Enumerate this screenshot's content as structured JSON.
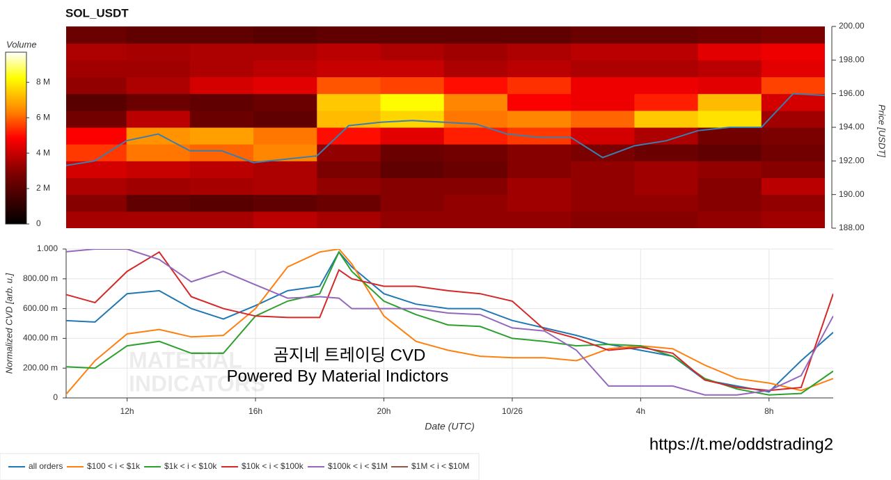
{
  "chart_data": [
    {
      "type": "heatmap",
      "title": "SOL_USDT",
      "colorbar_label": "Volume",
      "ylabel": "Price [USDT]",
      "xlim": [
        10.1,
        34
      ],
      "ylim": [
        188,
        200
      ],
      "yticks": [
        {
          "value": 188,
          "label": "188.00"
        },
        {
          "value": 190,
          "label": "190.00"
        },
        {
          "value": 192,
          "label": "192.00"
        },
        {
          "value": 194,
          "label": "194.00"
        },
        {
          "value": 196,
          "label": "196.00"
        },
        {
          "value": 198,
          "label": "198.00"
        },
        {
          "value": 200,
          "label": "200.00"
        }
      ],
      "zlim": [
        0,
        9.7
      ],
      "zticks": [
        0,
        {
          "value": 2,
          "label": "2 M"
        },
        {
          "value": 4,
          "label": "4 M"
        },
        {
          "value": 6,
          "label": "6 M"
        },
        {
          "value": 8,
          "label": "8 M"
        }
      ],
      "x_bins": [
        10,
        12,
        14,
        16,
        18,
        20,
        22,
        24,
        26,
        28,
        30,
        32,
        34
      ],
      "y_bins": [
        188,
        189,
        190,
        191,
        192,
        193,
        194,
        195,
        196,
        197,
        198,
        199,
        200
      ],
      "z": [
        [
          3.5,
          3.5,
          3.5,
          3.8,
          3.5,
          3.2,
          3.2,
          3.2,
          3.0,
          3.0,
          3.2,
          3.4
        ],
        [
          3.0,
          2.2,
          2.0,
          2.2,
          2.4,
          3.0,
          3.2,
          3.4,
          3.2,
          3.2,
          3.0,
          3.2
        ],
        [
          3.6,
          3.4,
          3.5,
          3.6,
          3.2,
          3.0,
          3.0,
          3.4,
          3.2,
          3.4,
          3.0,
          3.8
        ],
        [
          4.2,
          4.0,
          3.8,
          3.6,
          2.8,
          2.2,
          2.4,
          3.0,
          3.2,
          3.4,
          3.2,
          3.0
        ],
        [
          5.5,
          6.2,
          6.0,
          6.4,
          3.2,
          2.4,
          2.6,
          3.0,
          2.8,
          2.4,
          2.2,
          2.6
        ],
        [
          4.8,
          6.6,
          6.8,
          6.2,
          5.0,
          4.4,
          5.2,
          5.5,
          4.2,
          3.6,
          2.6,
          2.8
        ],
        [
          2.6,
          3.8,
          2.4,
          2.2,
          7.2,
          7.6,
          6.2,
          6.4,
          6.0,
          7.4,
          7.8,
          3.4
        ],
        [
          2.0,
          2.4,
          2.2,
          2.4,
          7.4,
          8.2,
          6.4,
          4.8,
          4.6,
          5.2,
          7.2,
          4.2
        ],
        [
          3.2,
          3.6,
          4.2,
          4.4,
          5.8,
          5.6,
          5.0,
          5.4,
          4.6,
          4.6,
          4.4,
          5.6
        ],
        [
          3.4,
          3.4,
          3.6,
          3.8,
          4.0,
          4.0,
          3.6,
          3.8,
          3.6,
          3.6,
          3.8,
          4.4
        ],
        [
          3.6,
          3.5,
          3.6,
          3.6,
          3.8,
          3.6,
          3.4,
          3.6,
          3.8,
          3.8,
          4.4,
          4.6
        ],
        [
          2.4,
          2.2,
          2.2,
          2.0,
          2.2,
          2.2,
          2.2,
          2.2,
          2.4,
          2.4,
          2.6,
          2.8
        ]
      ],
      "price": {
        "color": "#3a7fb0",
        "x": [
          10,
          11,
          12,
          13,
          14,
          15,
          16,
          17,
          18,
          19,
          20,
          21,
          22,
          23,
          24,
          25,
          26,
          27,
          28,
          29,
          30,
          31,
          32,
          33,
          34
        ],
        "values": [
          191.7,
          192.0,
          193.2,
          193.6,
          192.6,
          192.6,
          191.9,
          192.1,
          192.3,
          194.1,
          194.3,
          194.4,
          194.3,
          194.2,
          193.6,
          193.4,
          193.4,
          192.2,
          192.9,
          193.2,
          193.8,
          194.0,
          194.0,
          196.0,
          195.9
        ]
      }
    },
    {
      "type": "line",
      "xlabel": "Date (UTC)",
      "ylabel": "Normalized CVD [arb. u.]",
      "grid": true,
      "xlim": [
        10.1,
        34
      ],
      "ylim": [
        0,
        1
      ],
      "xticks": [
        {
          "value": 12,
          "label": "12h"
        },
        {
          "value": 16,
          "label": "16h"
        },
        {
          "value": 20,
          "label": "20h"
        },
        {
          "value": 24,
          "label": "10/26"
        },
        {
          "value": 28,
          "label": "4h"
        },
        {
          "value": 32,
          "label": "8h"
        }
      ],
      "yticks": [
        0,
        {
          "value": 0.2,
          "label": "200.00 m"
        },
        {
          "value": 0.4,
          "label": "400.00 m"
        },
        {
          "value": 0.6,
          "label": "600.00 m"
        },
        {
          "value": 0.8,
          "label": "800.00 m"
        },
        {
          "value": 1,
          "label": "1.000"
        }
      ],
      "x": [
        10,
        11,
        12,
        13,
        14,
        15,
        16,
        17,
        18,
        18.6,
        19,
        20,
        21,
        22,
        23,
        24,
        25,
        26,
        27,
        28,
        29,
        30,
        31,
        32,
        33,
        34
      ],
      "series": [
        {
          "name": "all orders",
          "color": "#1f77b4",
          "values": [
            0.52,
            0.51,
            0.7,
            0.72,
            0.6,
            0.53,
            0.62,
            0.72,
            0.75,
            0.98,
            0.88,
            0.7,
            0.63,
            0.6,
            0.6,
            0.52,
            0.47,
            0.42,
            0.36,
            0.32,
            0.28,
            0.12,
            0.08,
            0.04,
            0.25,
            0.44
          ]
        },
        {
          "name": "$100 < i < $1k",
          "color": "#ff7f0e",
          "values": [
            0.0,
            0.25,
            0.43,
            0.46,
            0.41,
            0.42,
            0.6,
            0.88,
            0.98,
            1.0,
            0.9,
            0.55,
            0.38,
            0.32,
            0.28,
            0.27,
            0.27,
            0.25,
            0.33,
            0.35,
            0.33,
            0.22,
            0.13,
            0.1,
            0.05,
            0.13
          ]
        },
        {
          "name": "$1k < i < $10k",
          "color": "#2ca02c",
          "values": [
            0.21,
            0.2,
            0.35,
            0.38,
            0.3,
            0.3,
            0.55,
            0.65,
            0.7,
            0.98,
            0.85,
            0.65,
            0.56,
            0.49,
            0.48,
            0.4,
            0.38,
            0.35,
            0.36,
            0.35,
            0.28,
            0.13,
            0.06,
            0.02,
            0.03,
            0.18
          ]
        },
        {
          "name": "$10k < i < $100k",
          "color": "#d62728",
          "values": [
            0.7,
            0.64,
            0.85,
            0.98,
            0.68,
            0.6,
            0.55,
            0.54,
            0.54,
            0.86,
            0.8,
            0.75,
            0.75,
            0.72,
            0.7,
            0.65,
            0.46,
            0.4,
            0.32,
            0.34,
            0.3,
            0.12,
            0.07,
            0.05,
            0.07,
            0.7
          ]
        },
        {
          "name": "$100k < i < $1M",
          "color": "#9467bd",
          "values": [
            0.98,
            1.0,
            1.0,
            0.93,
            0.78,
            0.85,
            0.76,
            0.67,
            0.68,
            0.67,
            0.6,
            0.6,
            0.6,
            0.57,
            0.56,
            0.47,
            0.45,
            0.32,
            0.08,
            0.08,
            0.08,
            0.02,
            0.02,
            0.05,
            0.15,
            0.55
          ]
        },
        {
          "name": "$1M < i < $10M",
          "color": "#8c564b",
          "values": [
            null,
            null,
            null,
            null,
            null,
            null,
            null,
            null,
            null,
            null,
            null,
            null,
            null,
            null,
            null,
            null,
            null,
            null,
            null,
            null,
            null,
            null,
            null,
            null,
            null,
            null
          ]
        }
      ]
    }
  ],
  "overlay": {
    "title": "곰지네 트레이딩 CVD",
    "subtitle": "Powered By Material Indictors",
    "url": "https://t.me/oddstrading2",
    "watermark": [
      "MATERIAL",
      "INDICATORS"
    ]
  }
}
